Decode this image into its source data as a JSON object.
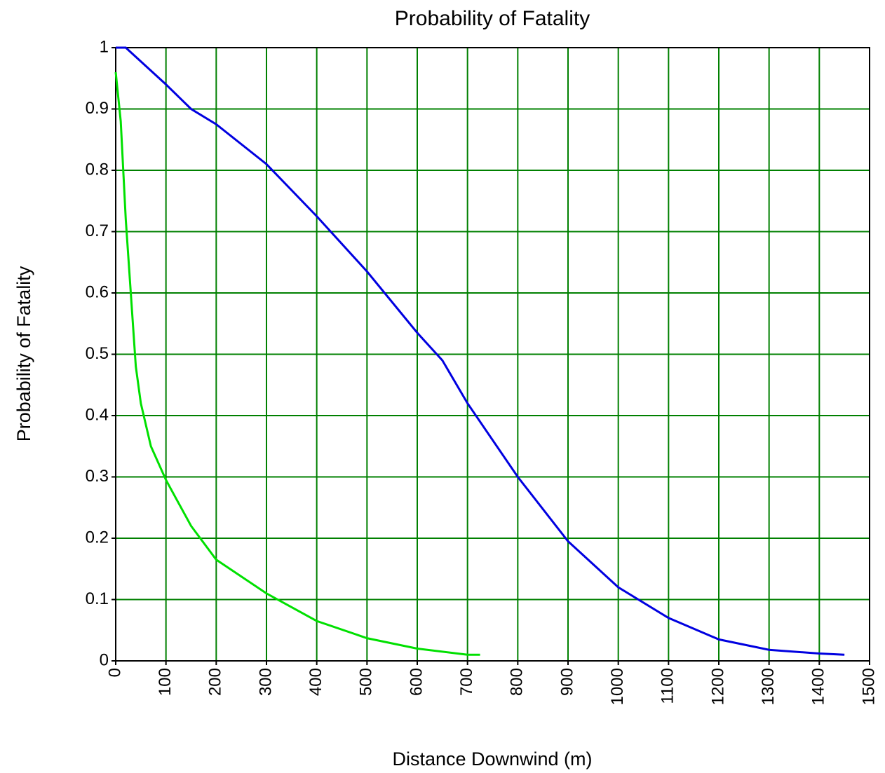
{
  "chart_data": {
    "type": "line",
    "title": "Probability of Fatality",
    "xlabel": "Distance Downwind (m)",
    "ylabel": "Probability of Fatality",
    "series": [
      {
        "color": "#0000e0",
        "x": [
          0,
          20,
          100,
          150,
          200,
          300,
          400,
          500,
          600,
          650,
          700,
          800,
          900,
          1000,
          1100,
          1200,
          1300,
          1400,
          1450
        ],
        "values": [
          1.0,
          1.0,
          0.94,
          0.9,
          0.875,
          0.81,
          0.725,
          0.635,
          0.535,
          0.49,
          0.42,
          0.3,
          0.195,
          0.12,
          0.07,
          0.035,
          0.018,
          0.012,
          0.01
        ]
      },
      {
        "color": "#00e000",
        "x": [
          0,
          10,
          20,
          30,
          40,
          50,
          70,
          100,
          150,
          200,
          300,
          400,
          500,
          600,
          700,
          725
        ],
        "values": [
          0.96,
          0.88,
          0.72,
          0.6,
          0.48,
          0.42,
          0.35,
          0.295,
          0.22,
          0.165,
          0.11,
          0.065,
          0.037,
          0.02,
          0.01,
          0.01
        ]
      }
    ],
    "xlim": [
      0,
      1500
    ],
    "xticks": [
      0,
      100,
      200,
      300,
      400,
      500,
      600,
      700,
      800,
      900,
      1000,
      1100,
      1200,
      1300,
      1400,
      1500
    ],
    "ylim": [
      0,
      1
    ],
    "yticks": [
      0,
      0.1,
      0.2,
      0.3,
      0.4,
      0.5,
      0.6,
      0.7,
      0.8,
      0.9,
      1
    ],
    "grid": true,
    "grid_color": "#008000"
  }
}
